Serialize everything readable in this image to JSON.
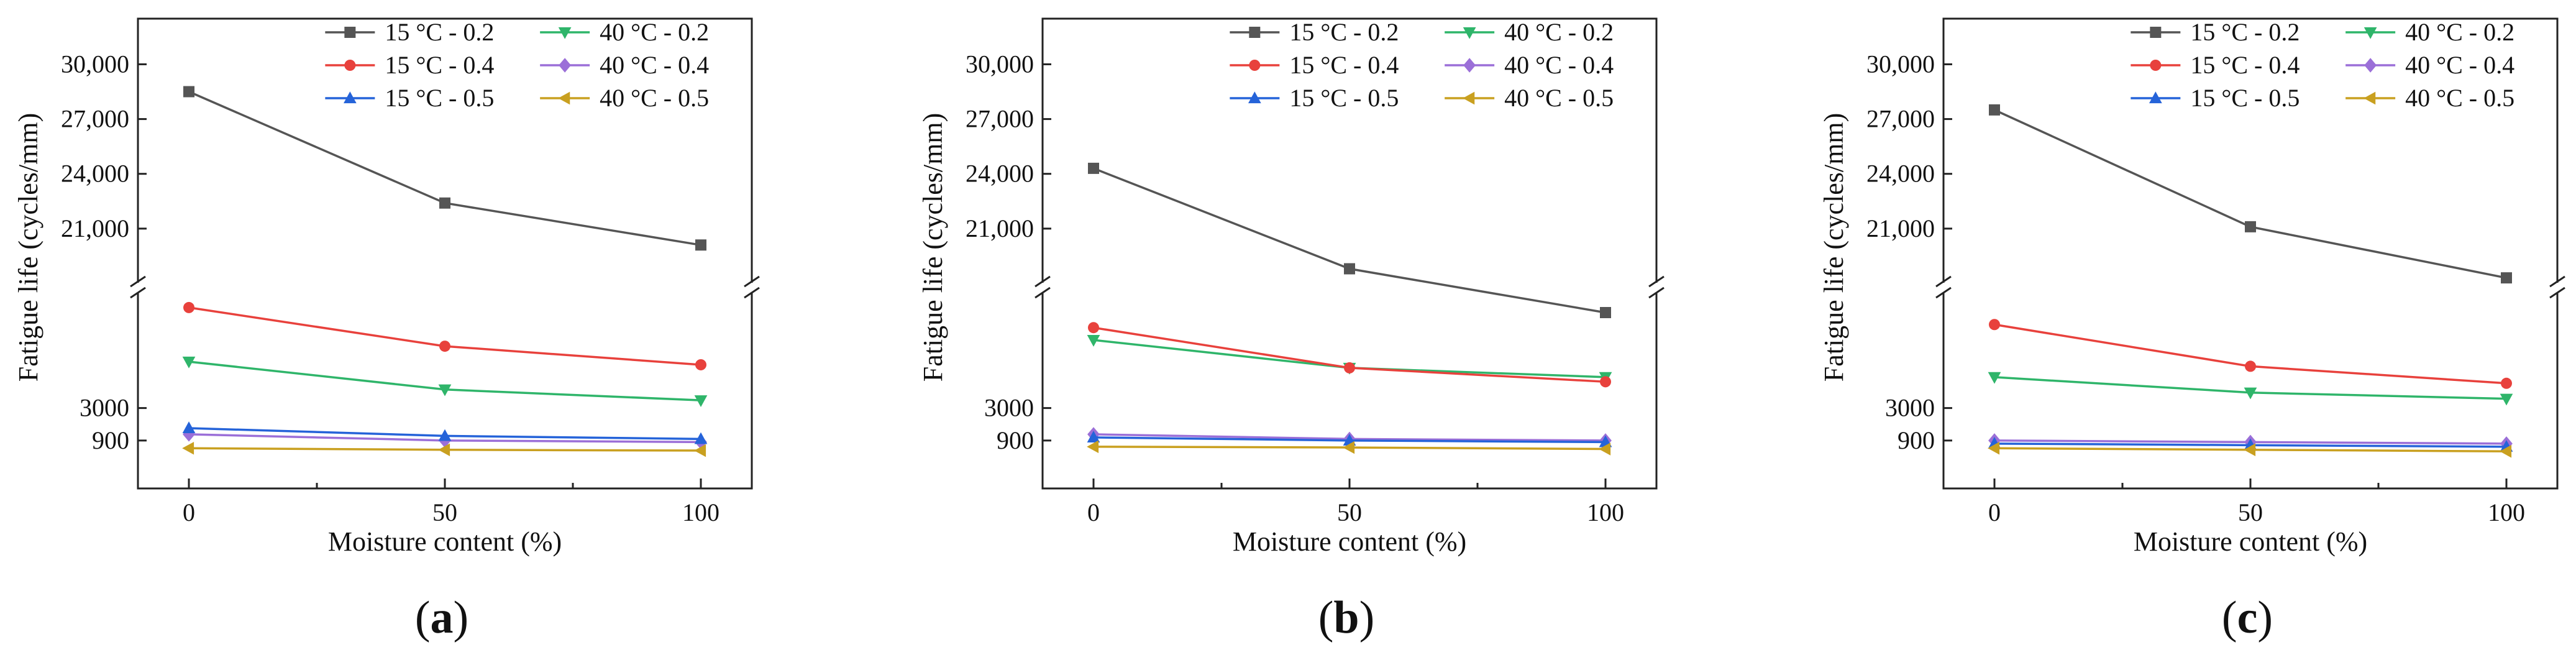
{
  "chart_data": [
    {
      "type": "line",
      "panel": "a",
      "panel_label": {
        "open": "(",
        "letter": "a",
        "close": ")"
      },
      "xlabel": "Moisture content (%)",
      "ylabel": "Fatigue life (cycles/mm)",
      "x": [
        0,
        50,
        100
      ],
      "xticks": [
        "0",
        "50",
        "100"
      ],
      "yticks": [
        "900",
        "3000",
        "21,000",
        "24,000",
        "27,000",
        "30,000"
      ],
      "y_axis_break": true,
      "series": [
        {
          "name": "15 °C - 0.2",
          "color": "#555555",
          "marker": "square",
          "values": [
            28500,
            22400,
            20100
          ]
        },
        {
          "name": "40 °C - 0.2",
          "color": "#2fb56a",
          "marker": "triangle-down",
          "values": [
            6000,
            4200,
            3500
          ]
        },
        {
          "name": "15 °C - 0.4",
          "color": "#e8413c",
          "marker": "circle",
          "values": [
            9500,
            7000,
            5800
          ]
        },
        {
          "name": "40 °C - 0.4",
          "color": "#9b6fd8",
          "marker": "diamond",
          "values": [
            1300,
            900,
            800
          ]
        },
        {
          "name": "15 °C - 0.5",
          "color": "#2563d9",
          "marker": "triangle-up",
          "values": [
            1700,
            1200,
            1000
          ]
        },
        {
          "name": "40 °C - 0.5",
          "color": "#c9a020",
          "marker": "triangle-left",
          "values": [
            400,
            300,
            250
          ]
        }
      ]
    },
    {
      "type": "line",
      "panel": "b",
      "panel_label": {
        "open": "(",
        "letter": "b",
        "close": ")"
      },
      "xlabel": "Moisture content (%)",
      "ylabel": "Fatigue life (cycles/mm)",
      "x": [
        0,
        50,
        100
      ],
      "xticks": [
        "0",
        "50",
        "100"
      ],
      "yticks": [
        "900",
        "3000",
        "21,000",
        "24,000",
        "27,000",
        "30,000"
      ],
      "y_axis_break": true,
      "series": [
        {
          "name": "15 °C - 0.2",
          "color": "#555555",
          "marker": "square",
          "values": [
            24300,
            18800,
            16400
          ]
        },
        {
          "name": "40 °C - 0.2",
          "color": "#2fb56a",
          "marker": "triangle-down",
          "values": [
            7400,
            5600,
            5000
          ]
        },
        {
          "name": "15 °C - 0.4",
          "color": "#e8413c",
          "marker": "circle",
          "values": [
            8200,
            5600,
            4700
          ]
        },
        {
          "name": "40 °C - 0.4",
          "color": "#9b6fd8",
          "marker": "diamond",
          "values": [
            1300,
            1000,
            900
          ]
        },
        {
          "name": "15 °C - 0.5",
          "color": "#2563d9",
          "marker": "triangle-up",
          "values": [
            1100,
            900,
            800
          ]
        },
        {
          "name": "40 °C - 0.5",
          "color": "#c9a020",
          "marker": "triangle-left",
          "values": [
            500,
            450,
            350
          ]
        }
      ]
    },
    {
      "type": "line",
      "panel": "c",
      "panel_label": {
        "open": "(",
        "letter": "c",
        "close": ")"
      },
      "xlabel": "Moisture content (%)",
      "ylabel": "Fatigue life (cycles/mm)",
      "x": [
        0,
        50,
        100
      ],
      "xticks": [
        "0",
        "50",
        "100"
      ],
      "yticks": [
        "900",
        "3000",
        "21,000",
        "24,000",
        "27,000",
        "30,000"
      ],
      "y_axis_break": true,
      "series": [
        {
          "name": "15 °C - 0.2",
          "color": "#555555",
          "marker": "square",
          "values": [
            27500,
            21100,
            18300
          ]
        },
        {
          "name": "40 °C - 0.2",
          "color": "#2fb56a",
          "marker": "triangle-down",
          "values": [
            5000,
            4000,
            3600
          ]
        },
        {
          "name": "15 °C - 0.4",
          "color": "#e8413c",
          "marker": "circle",
          "values": [
            8400,
            5700,
            4600
          ]
        },
        {
          "name": "40 °C - 0.4",
          "color": "#9b6fd8",
          "marker": "diamond",
          "values": [
            900,
            800,
            700
          ]
        },
        {
          "name": "15 °C - 0.5",
          "color": "#2563d9",
          "marker": "triangle-up",
          "values": [
            700,
            600,
            500
          ]
        },
        {
          "name": "40 °C - 0.5",
          "color": "#c9a020",
          "marker": "triangle-left",
          "values": [
            400,
            300,
            200
          ]
        }
      ]
    }
  ]
}
